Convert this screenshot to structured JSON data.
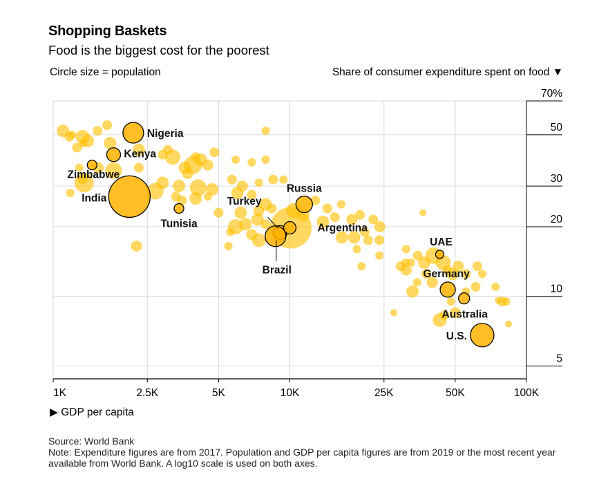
{
  "header": {
    "title": "Shopping Baskets",
    "subtitle": "Food is the biggest cost for the poorest",
    "size_note": "Circle size = population",
    "y_note": "Share of consumer expenditure spent on food ▼"
  },
  "x_caption": "▶ GDP per capita",
  "source": {
    "line1": "Source: World Bank",
    "line2": "Note: Expenditure figures are from 2017. Population and GDP per capita figures are from 2019 or the most recent year available from World Bank. A log10 scale is used on both axes."
  },
  "colors": {
    "bubble": "#ffc000",
    "labeled_bubble": "#ffb100",
    "outline": "#000000",
    "grid": "#d9d9d9"
  },
  "chart_data": {
    "type": "scatter",
    "title": "Shopping Baskets",
    "subtitle": "Food is the biggest cost for the poorest",
    "xlabel": "GDP per capita",
    "ylabel": "Share of consumer expenditure spent on food",
    "xscale": "log10",
    "yscale": "log10",
    "xlim": [
      1000,
      100000
    ],
    "ylim": [
      4.4,
      70
    ],
    "x_ticks": [
      {
        "value": 1000,
        "label": "1K"
      },
      {
        "value": 2500,
        "label": "2.5K"
      },
      {
        "value": 5000,
        "label": "5K"
      },
      {
        "value": 10000,
        "label": "10K"
      },
      {
        "value": 25000,
        "label": "25K"
      },
      {
        "value": 50000,
        "label": "50K"
      },
      {
        "value": 100000,
        "label": "100K"
      }
    ],
    "y_ticks": [
      {
        "value": 70,
        "label": "70%"
      },
      {
        "value": 50,
        "label": "50"
      },
      {
        "value": 30,
        "label": "30"
      },
      {
        "value": 20,
        "label": "20"
      },
      {
        "value": 10,
        "label": "10"
      },
      {
        "value": 5,
        "label": "5"
      }
    ],
    "size_encoding": "population",
    "labeled_points": [
      {
        "name": "Nigeria",
        "x": 2180,
        "y": 51,
        "size": 15,
        "label_pos": "right"
      },
      {
        "name": "Kenya",
        "x": 1800,
        "y": 41,
        "size": 10,
        "label_pos": "right"
      },
      {
        "name": "Zimbabwe",
        "x": 1460,
        "y": 37,
        "size": 7,
        "label_pos": "below-left"
      },
      {
        "name": "India",
        "x": 2100,
        "y": 27,
        "size": 30,
        "label_pos": "left"
      },
      {
        "name": "Tunisia",
        "x": 3400,
        "y": 24,
        "size": 7,
        "label_pos": "below"
      },
      {
        "name": "Russia",
        "x": 11500,
        "y": 25,
        "size": 12,
        "label_pos": "above"
      },
      {
        "name": "Turkey",
        "x": 9100,
        "y": 18.9,
        "size": 10,
        "label_pos": "above-left"
      },
      {
        "name": "Argentina",
        "x": 10000,
        "y": 19.8,
        "size": 9,
        "label_pos": "right"
      },
      {
        "name": "Brazil",
        "x": 8700,
        "y": 18.2,
        "size": 15,
        "label_pos": "below"
      },
      {
        "name": "UAE",
        "x": 43000,
        "y": 15.2,
        "size": 6,
        "label_pos": "above"
      },
      {
        "name": "Germany",
        "x": 46500,
        "y": 10.7,
        "size": 11,
        "label_pos": "above"
      },
      {
        "name": "Australia",
        "x": 54500,
        "y": 9.8,
        "size": 8,
        "label_pos": "below"
      },
      {
        "name": "U.S.",
        "x": 65000,
        "y": 6.8,
        "size": 17,
        "label_pos": "left"
      }
    ],
    "other_points": [
      {
        "x": 1100,
        "y": 52,
        "size": 9
      },
      {
        "x": 1200,
        "y": 50,
        "size": 6
      },
      {
        "x": 1330,
        "y": 49,
        "size": 10
      },
      {
        "x": 1170,
        "y": 49,
        "size": 7
      },
      {
        "x": 1400,
        "y": 47,
        "size": 9
      },
      {
        "x": 1540,
        "y": 52,
        "size": 7
      },
      {
        "x": 1690,
        "y": 55,
        "size": 7
      },
      {
        "x": 1260,
        "y": 44,
        "size": 7
      },
      {
        "x": 1340,
        "y": 46,
        "size": 6
      },
      {
        "x": 1740,
        "y": 46,
        "size": 9
      },
      {
        "x": 2300,
        "y": 43,
        "size": 9
      },
      {
        "x": 2900,
        "y": 41,
        "size": 7
      },
      {
        "x": 3050,
        "y": 43,
        "size": 7
      },
      {
        "x": 4000,
        "y": 40,
        "size": 7
      },
      {
        "x": 4800,
        "y": 42,
        "size": 7
      },
      {
        "x": 3200,
        "y": 40,
        "size": 11
      },
      {
        "x": 3900,
        "y": 37,
        "size": 13
      },
      {
        "x": 4200,
        "y": 39,
        "size": 9
      },
      {
        "x": 3600,
        "y": 36,
        "size": 9
      },
      {
        "x": 3700,
        "y": 34,
        "size": 8
      },
      {
        "x": 4500,
        "y": 37,
        "size": 8
      },
      {
        "x": 1290,
        "y": 36,
        "size": 6
      },
      {
        "x": 1330,
        "y": 32,
        "size": 7
      },
      {
        "x": 1550,
        "y": 36,
        "size": 8
      },
      {
        "x": 1800,
        "y": 35,
        "size": 12
      },
      {
        "x": 1350,
        "y": 31,
        "size": 14
      },
      {
        "x": 2300,
        "y": 36,
        "size": 7
      },
      {
        "x": 2700,
        "y": 28.5,
        "size": 12
      },
      {
        "x": 2900,
        "y": 31,
        "size": 9
      },
      {
        "x": 3400,
        "y": 30,
        "size": 9
      },
      {
        "x": 3300,
        "y": 27,
        "size": 7
      },
      {
        "x": 4100,
        "y": 29.5,
        "size": 12
      },
      {
        "x": 4700,
        "y": 29,
        "size": 9
      },
      {
        "x": 4000,
        "y": 26.5,
        "size": 9
      },
      {
        "x": 4500,
        "y": 27,
        "size": 6
      },
      {
        "x": 3500,
        "y": 26,
        "size": 7
      },
      {
        "x": 5900,
        "y": 39,
        "size": 6
      },
      {
        "x": 6900,
        "y": 38,
        "size": 6
      },
      {
        "x": 7900,
        "y": 39,
        "size": 6
      },
      {
        "x": 5700,
        "y": 32,
        "size": 7
      },
      {
        "x": 6300,
        "y": 30,
        "size": 8
      },
      {
        "x": 7400,
        "y": 31,
        "size": 6
      },
      {
        "x": 8500,
        "y": 32,
        "size": 7
      },
      {
        "x": 9400,
        "y": 32,
        "size": 6
      },
      {
        "x": 7900,
        "y": 52,
        "size": 6
      },
      {
        "x": 6000,
        "y": 28,
        "size": 9
      },
      {
        "x": 6900,
        "y": 27.5,
        "size": 7
      },
      {
        "x": 7900,
        "y": 25,
        "size": 9
      },
      {
        "x": 6200,
        "y": 23,
        "size": 9
      },
      {
        "x": 7400,
        "y": 23.5,
        "size": 8
      },
      {
        "x": 8400,
        "y": 24,
        "size": 7
      },
      {
        "x": 5000,
        "y": 23,
        "size": 7
      },
      {
        "x": 6500,
        "y": 20.5,
        "size": 9
      },
      {
        "x": 5900,
        "y": 20,
        "size": 11
      },
      {
        "x": 7300,
        "y": 21.5,
        "size": 9
      },
      {
        "x": 7900,
        "y": 20.5,
        "size": 7
      },
      {
        "x": 10100,
        "y": 19.8,
        "size": 30
      },
      {
        "x": 10400,
        "y": 23.5,
        "size": 11
      },
      {
        "x": 11400,
        "y": 22.5,
        "size": 9
      },
      {
        "x": 12800,
        "y": 26,
        "size": 7
      },
      {
        "x": 14400,
        "y": 24,
        "size": 7
      },
      {
        "x": 16500,
        "y": 25,
        "size": 6
      },
      {
        "x": 18300,
        "y": 21.5,
        "size": 8
      },
      {
        "x": 13800,
        "y": 21,
        "size": 9
      },
      {
        "x": 15500,
        "y": 22,
        "size": 7
      },
      {
        "x": 19800,
        "y": 22.5,
        "size": 7
      },
      {
        "x": 22500,
        "y": 21.5,
        "size": 7
      },
      {
        "x": 24000,
        "y": 20,
        "size": 8
      },
      {
        "x": 20700,
        "y": 19,
        "size": 7
      },
      {
        "x": 18700,
        "y": 18,
        "size": 9
      },
      {
        "x": 16600,
        "y": 18,
        "size": 9
      },
      {
        "x": 21400,
        "y": 17.5,
        "size": 7
      },
      {
        "x": 19200,
        "y": 16,
        "size": 6
      },
      {
        "x": 23900,
        "y": 17.5,
        "size": 7
      },
      {
        "x": 23900,
        "y": 15,
        "size": 6
      },
      {
        "x": 20100,
        "y": 13.5,
        "size": 6
      },
      {
        "x": 5500,
        "y": 16.5,
        "size": 6
      },
      {
        "x": 7400,
        "y": 17.5,
        "size": 10
      },
      {
        "x": 6900,
        "y": 18.5,
        "size": 8
      },
      {
        "x": 5600,
        "y": 19,
        "size": 6
      },
      {
        "x": 2250,
        "y": 16.5,
        "size": 8
      },
      {
        "x": 31000,
        "y": 16,
        "size": 6
      },
      {
        "x": 32500,
        "y": 14,
        "size": 6
      },
      {
        "x": 34700,
        "y": 15,
        "size": 7
      },
      {
        "x": 37000,
        "y": 14,
        "size": 9
      },
      {
        "x": 40500,
        "y": 15,
        "size": 12
      },
      {
        "x": 44500,
        "y": 14,
        "size": 11
      },
      {
        "x": 46300,
        "y": 13,
        "size": 7
      },
      {
        "x": 48800,
        "y": 12.5,
        "size": 9
      },
      {
        "x": 51500,
        "y": 13.5,
        "size": 8
      },
      {
        "x": 55500,
        "y": 12.5,
        "size": 7
      },
      {
        "x": 30800,
        "y": 14,
        "size": 6
      },
      {
        "x": 29400,
        "y": 13.5,
        "size": 7
      },
      {
        "x": 31000,
        "y": 13,
        "size": 8
      },
      {
        "x": 34500,
        "y": 11.5,
        "size": 6
      },
      {
        "x": 33000,
        "y": 10.5,
        "size": 9
      },
      {
        "x": 40000,
        "y": 11.5,
        "size": 8
      },
      {
        "x": 37700,
        "y": 12.5,
        "size": 7
      },
      {
        "x": 55500,
        "y": 10.5,
        "size": 6
      },
      {
        "x": 61000,
        "y": 11,
        "size": 7
      },
      {
        "x": 65000,
        "y": 12.5,
        "size": 6
      },
      {
        "x": 74000,
        "y": 11,
        "size": 6
      },
      {
        "x": 79000,
        "y": 9.5,
        "size": 7
      },
      {
        "x": 82000,
        "y": 9.5,
        "size": 6
      },
      {
        "x": 76000,
        "y": 9.6,
        "size": 5
      },
      {
        "x": 84000,
        "y": 7.6,
        "size": 5
      },
      {
        "x": 48000,
        "y": 9.5,
        "size": 6
      },
      {
        "x": 45000,
        "y": 8.3,
        "size": 7
      },
      {
        "x": 43000,
        "y": 7.9,
        "size": 10
      },
      {
        "x": 50000,
        "y": 8.5,
        "size": 8
      },
      {
        "x": 36500,
        "y": 23,
        "size": 5
      },
      {
        "x": 27500,
        "y": 8.5,
        "size": 5
      },
      {
        "x": 62000,
        "y": 13.5,
        "size": 7
      },
      {
        "x": 1180,
        "y": 28,
        "size": 6
      }
    ]
  }
}
